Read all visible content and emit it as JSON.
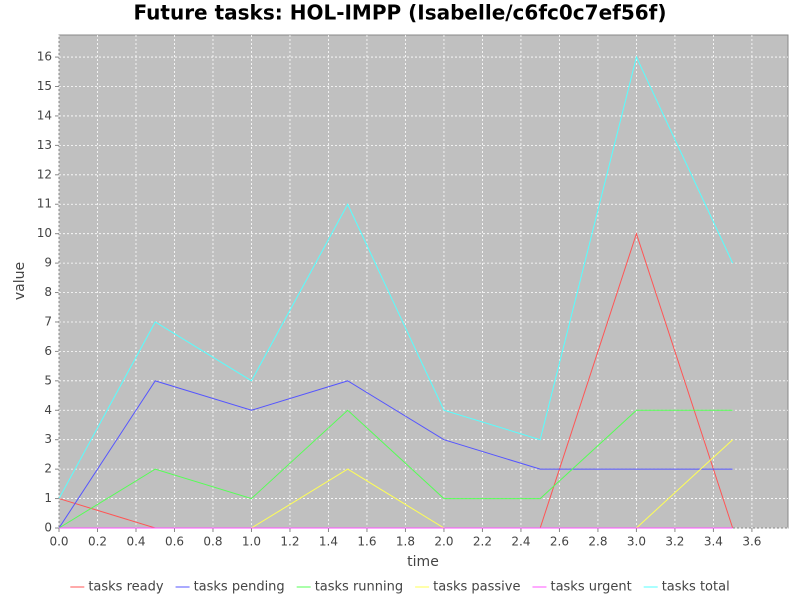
{
  "chart_data": {
    "type": "line",
    "title": "Future tasks: HOL-IMPP (Isabelle/c6fc0c7ef56f)",
    "x_label": "time",
    "y_label": "value",
    "x": [
      0,
      0.5,
      1,
      1.5,
      2,
      2.5,
      3,
      3.5
    ],
    "series": [
      {
        "name": "tasks ready",
        "color": "#ff5555",
        "values": [
          1,
          0,
          0,
          0,
          0,
          0,
          10,
          0
        ]
      },
      {
        "name": "tasks pending",
        "color": "#5555ff",
        "values": [
          0,
          5,
          4,
          5,
          3,
          2,
          2,
          2
        ]
      },
      {
        "name": "tasks running",
        "color": "#55ff55",
        "values": [
          0,
          2,
          1,
          4,
          1,
          1,
          4,
          4
        ]
      },
      {
        "name": "tasks passive",
        "color": "#ffff55",
        "values": [
          0,
          0,
          0,
          2,
          0,
          0,
          0,
          3
        ]
      },
      {
        "name": "tasks urgent",
        "color": "#ff55ff",
        "values": [
          0,
          0,
          0,
          0,
          0,
          0,
          0,
          0
        ]
      },
      {
        "name": "tasks total",
        "color": "#55ffff",
        "values": [
          1,
          7,
          5,
          11,
          4,
          3,
          16,
          9
        ]
      }
    ],
    "xlim": [
      0,
      3.7875
    ],
    "ylim": [
      0,
      16.75
    ],
    "xticks": [
      {
        "value": 0,
        "label": "0.0"
      },
      0.2,
      0.4,
      0.6,
      0.8,
      {
        "value": 1,
        "label": "1.0"
      },
      1.2,
      1.4,
      1.6,
      1.8,
      {
        "value": 2,
        "label": "2.0"
      },
      2.2,
      2.4,
      2.6,
      2.8,
      {
        "value": 3,
        "label": "3.0"
      },
      3.2,
      3.4,
      3.6
    ],
    "yticks": [
      0,
      1,
      2,
      3,
      4,
      5,
      6,
      7,
      8,
      9,
      10,
      11,
      12,
      13,
      14,
      15,
      16
    ],
    "grid": true,
    "legend": "bottom"
  }
}
